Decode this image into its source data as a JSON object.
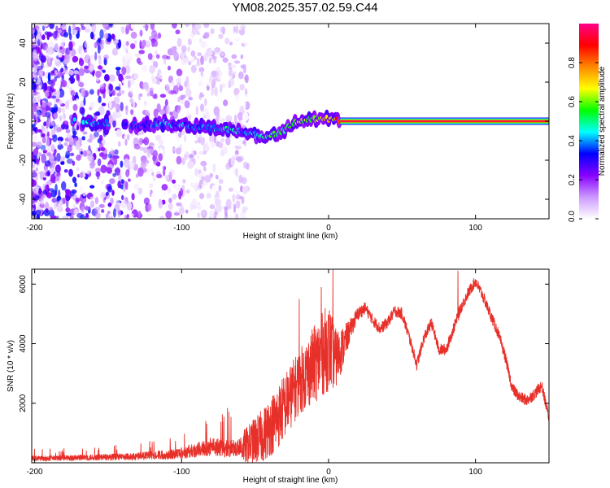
{
  "title": "YM08.2025.357.02.59.C44",
  "chart_data": [
    {
      "type": "heatmap",
      "name": "spectrogram",
      "xlabel": "Height of straight line (km)",
      "ylabel": "Frequency (Hz)",
      "xlim": [
        -202,
        150
      ],
      "ylim": [
        -50,
        50
      ],
      "xticks": [
        -200,
        -100,
        0,
        100
      ],
      "yticks": [
        40,
        20,
        0,
        -20,
        -40
      ],
      "colorbar": {
        "label": "Normalized spectral amplitude",
        "range": [
          0,
          1
        ],
        "ticks": [
          "0.0",
          "0.2",
          "0.4",
          "0.6",
          "0.8"
        ],
        "tick_values": [
          0.0,
          0.2,
          0.4,
          0.6,
          0.8
        ],
        "colors": [
          "#ffffff",
          "#cc99ff",
          "#8800ff",
          "#0000ff",
          "#00ffff",
          "#00ff00",
          "#ffff00",
          "#ff8800",
          "#ff0000",
          "#ff0088"
        ]
      },
      "signal_track": [
        {
          "x": -175,
          "freq": 0,
          "amp": 0.5
        },
        {
          "x": -130,
          "freq": -2,
          "amp": 0.35
        },
        {
          "x": -110,
          "freq": -1,
          "amp": 0.45
        },
        {
          "x": -90,
          "freq": -3,
          "amp": 0.4
        },
        {
          "x": -70,
          "freq": -4,
          "amp": 0.5
        },
        {
          "x": -55,
          "freq": -6,
          "amp": 0.45
        },
        {
          "x": -40,
          "freq": -8,
          "amp": 0.55
        },
        {
          "x": -30,
          "freq": -4,
          "amp": 0.55
        },
        {
          "x": -20,
          "freq": 0,
          "amp": 0.65
        },
        {
          "x": -10,
          "freq": 1,
          "amp": 0.7
        },
        {
          "x": 0,
          "freq": 1,
          "amp": 0.75
        },
        {
          "x": 8,
          "freq": 0,
          "amp": 0.9
        },
        {
          "x": 150,
          "freq": 0,
          "amp": 0.95
        }
      ]
    },
    {
      "type": "line",
      "name": "snr",
      "xlabel": "Height of straight line (km)",
      "ylabel": "SNR (10 * v/v)",
      "xlim": [
        -202,
        150
      ],
      "ylim": [
        0,
        6500
      ],
      "xticks": [
        -200,
        -100,
        0,
        100
      ],
      "yticks": [
        2000,
        4000,
        6000
      ],
      "color": "#e8302a",
      "series": [
        {
          "name": "SNR",
          "x": [
            -202,
            -190,
            -180,
            -170,
            -160,
            -150,
            -140,
            -130,
            -120,
            -110,
            -100,
            -90,
            -80,
            -70,
            -60,
            -55,
            -50,
            -45,
            -40,
            -35,
            -30,
            -25,
            -20,
            -15,
            -10,
            -5,
            0,
            5,
            10,
            15,
            20,
            25,
            30,
            35,
            40,
            45,
            50,
            55,
            60,
            65,
            70,
            75,
            80,
            85,
            90,
            95,
            100,
            105,
            110,
            115,
            120,
            125,
            130,
            135,
            140,
            145,
            150
          ],
          "y": [
            150,
            150,
            160,
            170,
            180,
            190,
            200,
            220,
            250,
            280,
            330,
            420,
            550,
            480,
            500,
            600,
            750,
            900,
            1200,
            1500,
            1900,
            2300,
            2700,
            3000,
            3300,
            3600,
            3900,
            3500,
            3900,
            4500,
            5000,
            5200,
            4800,
            4500,
            4700,
            5100,
            5000,
            4200,
            3300,
            4200,
            4700,
            3800,
            3800,
            4500,
            5200,
            5700,
            6100,
            5600,
            5000,
            4400,
            3600,
            2500,
            2200,
            2100,
            2300,
            2600,
            1500
          ],
          "noise": [
            80,
            80,
            80,
            80,
            90,
            90,
            100,
            110,
            120,
            150,
            180,
            250,
            400,
            350,
            500,
            650,
            800,
            900,
            1000,
            1100,
            1100,
            1100,
            1100,
            1200,
            1300,
            1400,
            1500,
            1000,
            700,
            350,
            250,
            200,
            200,
            200,
            200,
            200,
            200,
            200,
            200,
            200,
            200,
            200,
            200,
            200,
            200,
            200,
            200,
            200,
            200,
            200,
            200,
            200,
            200,
            200,
            200,
            200,
            200
          ],
          "spikes": [
            {
              "x": 3,
              "y": 6500
            },
            {
              "x": -5,
              "y": 5900
            },
            {
              "x": -20,
              "y": 5500
            },
            {
              "x": 88,
              "y": 6450
            }
          ]
        }
      ]
    }
  ]
}
